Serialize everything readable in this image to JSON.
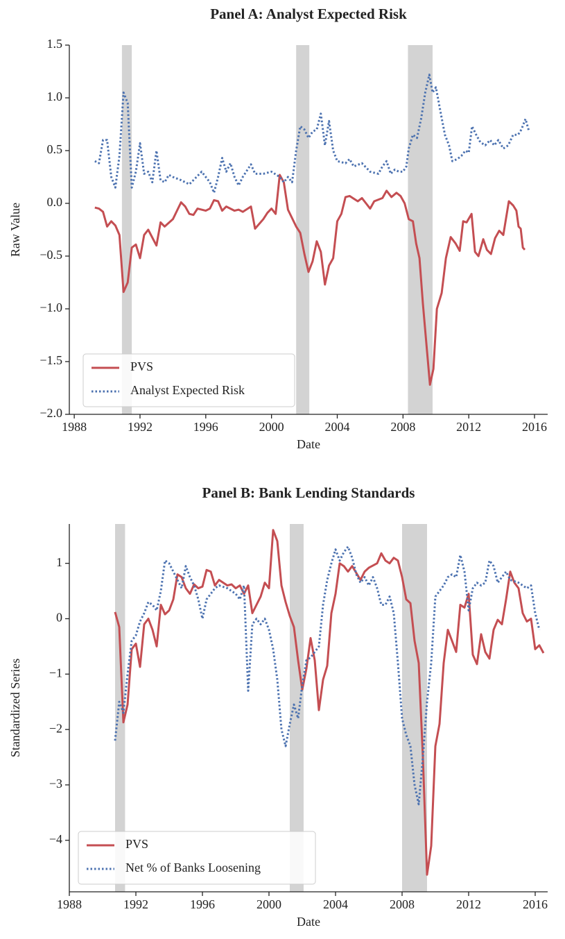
{
  "chart_data": [
    {
      "type": "line",
      "title": "Panel A: Analyst Expected Risk",
      "xlabel": "Date",
      "ylabel": "Raw Value",
      "xlim": [
        1987.7,
        2016.8
      ],
      "xticks": [
        1988,
        1992,
        1996,
        2000,
        2004,
        2008,
        2012,
        2016
      ],
      "ylim": [
        -2,
        1.5
      ],
      "yticks": [
        {
          "value": -2,
          "label": "−2.0"
        },
        {
          "value": -1.5,
          "label": "−1.5"
        },
        {
          "value": -1,
          "label": "−1.0"
        },
        {
          "value": -0.5,
          "label": "−0.5"
        },
        {
          "value": 0,
          "label": "0.0"
        },
        0.5,
        {
          "value": 1,
          "label": "1.0"
        },
        1.5
      ],
      "legend": "lower left",
      "shaded_regions": [
        [
          1990.9,
          1991.5
        ],
        [
          2001.5,
          2002.3
        ],
        [
          2008.3,
          2009.8
        ]
      ],
      "series": [
        {
          "name": "PVS",
          "color": "#c44e52",
          "style": "solid",
          "x": [
            1989.25,
            1989.5,
            1989.75,
            1990.0,
            1990.25,
            1990.5,
            1990.75,
            1991.0,
            1991.25,
            1991.5,
            1991.75,
            1992.0,
            1992.25,
            1992.5,
            1993.0,
            1993.25,
            1993.5,
            1994.0,
            1994.5,
            1994.75,
            1995.0,
            1995.25,
            1995.5,
            1996.0,
            1996.25,
            1996.5,
            1996.75,
            1997.0,
            1997.25,
            1997.75,
            1998.0,
            1998.25,
            1998.75,
            1999.0,
            1999.5,
            1999.75,
            2000.0,
            2000.25,
            2000.5,
            2000.75,
            2001.0,
            2001.5,
            2001.75,
            2002.0,
            2002.25,
            2002.5,
            2002.75,
            2003.0,
            2003.25,
            2003.5,
            2003.75,
            2004.0,
            2004.25,
            2004.5,
            2004.75,
            2005.25,
            2005.5,
            2005.75,
            2006.0,
            2006.25,
            2006.75,
            2007.0,
            2007.3,
            2007.6,
            2007.85,
            2008.1,
            2008.35,
            2008.6,
            2008.8,
            2009.0,
            2009.21,
            2009.64,
            2009.85,
            2010.06,
            2010.35,
            2010.61,
            2010.9,
            2011.2,
            2011.45,
            2011.66,
            2011.87,
            2012.17,
            2012.38,
            2012.59,
            2012.88,
            2013.1,
            2013.35,
            2013.6,
            2013.85,
            2014.1,
            2014.44,
            2014.7,
            2014.9,
            2015.03,
            2015.16,
            2015.29,
            2015.41
          ],
          "values": [
            -0.04,
            -0.05,
            -0.08,
            -0.22,
            -0.17,
            -0.21,
            -0.3,
            -0.84,
            -0.75,
            -0.42,
            -0.39,
            -0.52,
            -0.3,
            -0.25,
            -0.4,
            -0.18,
            -0.22,
            -0.15,
            0.01,
            -0.03,
            -0.1,
            -0.11,
            -0.05,
            -0.07,
            -0.05,
            0.03,
            0.02,
            -0.07,
            -0.03,
            -0.07,
            -0.06,
            -0.08,
            -0.03,
            -0.24,
            -0.15,
            -0.09,
            -0.05,
            -0.1,
            0.27,
            0.2,
            -0.06,
            -0.22,
            -0.28,
            -0.48,
            -0.65,
            -0.55,
            -0.36,
            -0.46,
            -0.77,
            -0.59,
            -0.52,
            -0.17,
            -0.1,
            0.06,
            0.07,
            0.02,
            0.05,
            0.0,
            -0.05,
            0.02,
            0.05,
            0.12,
            0.06,
            0.1,
            0.07,
            0.0,
            -0.15,
            -0.17,
            -0.38,
            -0.52,
            -0.95,
            -1.72,
            -1.57,
            -1.0,
            -0.85,
            -0.52,
            -0.32,
            -0.38,
            -0.45,
            -0.17,
            -0.18,
            -0.1,
            -0.46,
            -0.5,
            -0.34,
            -0.44,
            -0.48,
            -0.33,
            -0.26,
            -0.3,
            0.02,
            -0.02,
            -0.07,
            -0.22,
            -0.24,
            -0.42,
            -0.44
          ]
        },
        {
          "name": "Analyst Expected Risk",
          "color": "#4c72b0",
          "style": "dotted",
          "x": [
            1989.25,
            1989.5,
            1989.75,
            1990.0,
            1990.25,
            1990.5,
            1990.75,
            1991.0,
            1991.25,
            1991.5,
            1991.75,
            1992.0,
            1992.25,
            1992.5,
            1992.75,
            1993.0,
            1993.25,
            1993.5,
            1993.75,
            1994.0,
            1994.5,
            1995.0,
            1995.5,
            1995.75,
            1996.25,
            1996.5,
            1996.75,
            1997.0,
            1997.25,
            1997.5,
            1997.75,
            1998.0,
            1998.25,
            1998.75,
            1999.0,
            1999.5,
            2000.0,
            2000.5,
            2000.75,
            2001.0,
            2001.25,
            2001.5,
            2001.75,
            2002.0,
            2002.25,
            2002.5,
            2002.75,
            2003.0,
            2003.25,
            2003.5,
            2003.75,
            2004.0,
            2004.5,
            2004.75,
            2005.0,
            2005.5,
            2006.0,
            2006.5,
            2006.75,
            2007.0,
            2007.25,
            2007.5,
            2007.75,
            2008.0,
            2008.2,
            2008.35,
            2008.6,
            2008.85,
            2009.1,
            2009.35,
            2009.6,
            2009.8,
            2010.0,
            2010.3,
            2010.55,
            2010.8,
            2011.0,
            2011.3,
            2011.55,
            2011.8,
            2012.0,
            2012.2,
            2012.45,
            2012.7,
            2013.0,
            2013.3,
            2013.55,
            2013.8,
            2014.1,
            2014.4,
            2014.7,
            2015.0,
            2015.2,
            2015.45,
            2015.67
          ],
          "values": [
            0.4,
            0.38,
            0.6,
            0.6,
            0.25,
            0.15,
            0.45,
            1.05,
            0.95,
            0.15,
            0.3,
            0.57,
            0.28,
            0.3,
            0.2,
            0.5,
            0.22,
            0.2,
            0.27,
            0.25,
            0.22,
            0.18,
            0.26,
            0.3,
            0.2,
            0.1,
            0.25,
            0.43,
            0.3,
            0.38,
            0.25,
            0.17,
            0.25,
            0.37,
            0.28,
            0.28,
            0.3,
            0.25,
            0.2,
            0.25,
            0.2,
            0.5,
            0.73,
            0.7,
            0.62,
            0.68,
            0.7,
            0.85,
            0.55,
            0.78,
            0.5,
            0.4,
            0.38,
            0.42,
            0.35,
            0.38,
            0.3,
            0.28,
            0.35,
            0.4,
            0.28,
            0.32,
            0.3,
            0.3,
            0.35,
            0.52,
            0.65,
            0.62,
            0.8,
            1.05,
            1.22,
            1.05,
            1.1,
            0.85,
            0.65,
            0.55,
            0.4,
            0.42,
            0.45,
            0.5,
            0.48,
            0.73,
            0.65,
            0.58,
            0.55,
            0.6,
            0.55,
            0.6,
            0.52,
            0.55,
            0.65,
            0.65,
            0.7,
            0.8,
            0.68
          ]
        }
      ]
    },
    {
      "type": "line",
      "title": "Panel B: Bank Lending Standards",
      "xlabel": "Date",
      "ylabel": "Standardized Series",
      "xlim": [
        1988,
        2016.75
      ],
      "xticks": [
        1988,
        1992,
        1996,
        2000,
        2004,
        2008,
        2012,
        2016
      ],
      "ylim": [
        -4.93,
        1.71
      ],
      "yticks": [
        {
          "value": -4,
          "label": "−4"
        },
        {
          "value": -3,
          "label": "−3"
        },
        {
          "value": -2,
          "label": "−2"
        },
        {
          "value": -1,
          "label": "−1"
        },
        0,
        1
      ],
      "legend": "lower left",
      "shaded_regions": [
        [
          1990.75,
          1991.35
        ],
        [
          2001.25,
          2002.08
        ],
        [
          2008.0,
          2009.5
        ]
      ],
      "series": [
        {
          "name": "PVS",
          "color": "#c44e52",
          "style": "solid",
          "x": [
            1990.75,
            1991.0,
            1991.25,
            1991.5,
            1991.75,
            1992.0,
            1992.25,
            1992.5,
            1992.75,
            1993.0,
            1993.25,
            1993.5,
            1993.75,
            1994.0,
            1994.25,
            1994.5,
            1994.75,
            1995.0,
            1995.25,
            1995.5,
            1995.75,
            1996.0,
            1996.25,
            1996.5,
            1996.75,
            1997.0,
            1997.5,
            1997.75,
            1998.0,
            1998.25,
            1998.5,
            1998.75,
            1999.0,
            1999.25,
            1999.5,
            1999.75,
            2000.0,
            2000.25,
            2000.5,
            2000.75,
            2001.0,
            2001.25,
            2001.5,
            2001.75,
            2002.0,
            2002.25,
            2002.5,
            2002.75,
            2003.0,
            2003.25,
            2003.5,
            2003.75,
            2004.0,
            2004.25,
            2004.5,
            2004.75,
            2005.0,
            2005.5,
            2005.75,
            2006.0,
            2006.5,
            2006.75,
            2007.0,
            2007.25,
            2007.5,
            2007.75,
            2008.0,
            2008.25,
            2008.5,
            2008.75,
            2009.0,
            2009.25,
            2009.5,
            2009.75,
            2010.0,
            2010.25,
            2010.5,
            2010.75,
            2011.0,
            2011.25,
            2011.5,
            2011.75,
            2012.0,
            2012.25,
            2012.5,
            2012.75,
            2013.0,
            2013.25,
            2013.5,
            2013.75,
            2014.0,
            2014.25,
            2014.5,
            2014.75,
            2015.0,
            2015.25,
            2015.5,
            2015.75,
            2016.0,
            2016.25,
            2016.5
          ],
          "values": [
            0.12,
            -0.15,
            -1.87,
            -1.55,
            -0.55,
            -0.45,
            -0.87,
            -0.1,
            0.0,
            -0.2,
            -0.5,
            0.25,
            0.08,
            0.15,
            0.35,
            0.8,
            0.75,
            0.55,
            0.45,
            0.62,
            0.55,
            0.58,
            0.88,
            0.85,
            0.6,
            0.7,
            0.6,
            0.62,
            0.55,
            0.6,
            0.45,
            0.6,
            0.1,
            0.25,
            0.4,
            0.65,
            0.55,
            1.6,
            1.4,
            0.6,
            0.3,
            0.05,
            -0.15,
            -0.75,
            -1.28,
            -0.9,
            -0.35,
            -0.75,
            -1.65,
            -1.1,
            -0.85,
            0.1,
            0.45,
            1.0,
            0.95,
            0.85,
            0.95,
            0.7,
            0.85,
            0.92,
            1.0,
            1.18,
            1.05,
            1.0,
            1.1,
            1.05,
            0.75,
            0.35,
            0.28,
            -0.4,
            -0.8,
            -2.5,
            -4.62,
            -4.1,
            -2.3,
            -1.9,
            -0.8,
            -0.2,
            -0.4,
            -0.6,
            0.25,
            0.2,
            0.45,
            -0.65,
            -0.82,
            -0.28,
            -0.6,
            -0.72,
            -0.2,
            -0.02,
            -0.1,
            0.35,
            0.85,
            0.65,
            0.55,
            0.1,
            -0.05,
            0.0,
            -0.55,
            -0.48,
            -0.62
          ]
        },
        {
          "name": "Net % of Banks Loosening",
          "color": "#4c72b0",
          "style": "dotted",
          "x": [
            1990.75,
            1991.0,
            1991.25,
            1991.5,
            1991.75,
            1992.0,
            1992.25,
            1992.5,
            1992.75,
            1993.0,
            1993.25,
            1993.5,
            1993.75,
            1994.0,
            1994.25,
            1994.5,
            1994.75,
            1995.0,
            1995.25,
            1995.5,
            1995.75,
            1996.0,
            1996.25,
            1996.5,
            1996.75,
            1997.0,
            1997.5,
            1998.0,
            1998.25,
            1998.5,
            1998.75,
            1999.0,
            1999.25,
            1999.5,
            1999.75,
            2000.0,
            2000.25,
            2000.5,
            2000.75,
            2001.0,
            2001.25,
            2001.5,
            2001.75,
            2002.0,
            2002.25,
            2002.5,
            2002.75,
            2003.0,
            2003.25,
            2003.5,
            2003.75,
            2004.0,
            2004.25,
            2004.5,
            2004.75,
            2005.0,
            2005.25,
            2005.5,
            2005.75,
            2006.0,
            2006.25,
            2006.5,
            2006.75,
            2007.0,
            2007.25,
            2007.5,
            2007.75,
            2008.0,
            2008.25,
            2008.5,
            2008.75,
            2009.0,
            2009.25,
            2009.5,
            2009.75,
            2010.0,
            2010.25,
            2010.5,
            2010.75,
            2011.0,
            2011.25,
            2011.5,
            2011.75,
            2012.0,
            2012.25,
            2012.5,
            2012.75,
            2013.0,
            2013.25,
            2013.5,
            2013.75,
            2014.0,
            2014.25,
            2014.5,
            2015.0,
            2015.5,
            2015.75,
            2016.0,
            2016.25
          ],
          "values": [
            -2.2,
            -1.5,
            -1.7,
            -1.0,
            -0.4,
            -0.3,
            -0.05,
            0.1,
            0.3,
            0.25,
            0.15,
            0.5,
            1.05,
            1.0,
            0.85,
            0.7,
            0.55,
            0.95,
            0.75,
            0.6,
            0.35,
            0.0,
            0.35,
            0.45,
            0.55,
            0.6,
            0.55,
            0.45,
            0.35,
            0.6,
            -1.3,
            -0.1,
            0.0,
            -0.1,
            0.0,
            -0.2,
            -0.55,
            -1.1,
            -2.0,
            -2.3,
            -1.9,
            -1.55,
            -1.8,
            -1.2,
            -0.75,
            -0.7,
            -0.6,
            -0.5,
            0.25,
            0.7,
            1.0,
            1.25,
            1.05,
            1.2,
            1.3,
            1.1,
            0.8,
            0.65,
            0.75,
            0.6,
            0.75,
            0.55,
            0.25,
            0.25,
            0.4,
            0.1,
            -0.8,
            -1.8,
            -2.1,
            -2.3,
            -3.0,
            -3.35,
            -2.5,
            -1.5,
            -0.8,
            0.4,
            0.5,
            0.6,
            0.75,
            0.8,
            0.75,
            1.15,
            0.85,
            0.15,
            0.55,
            0.65,
            0.6,
            0.65,
            1.05,
            0.95,
            0.65,
            0.75,
            0.85,
            0.7,
            0.65,
            0.55,
            0.6,
            0.1,
            -0.2
          ]
        }
      ]
    }
  ]
}
